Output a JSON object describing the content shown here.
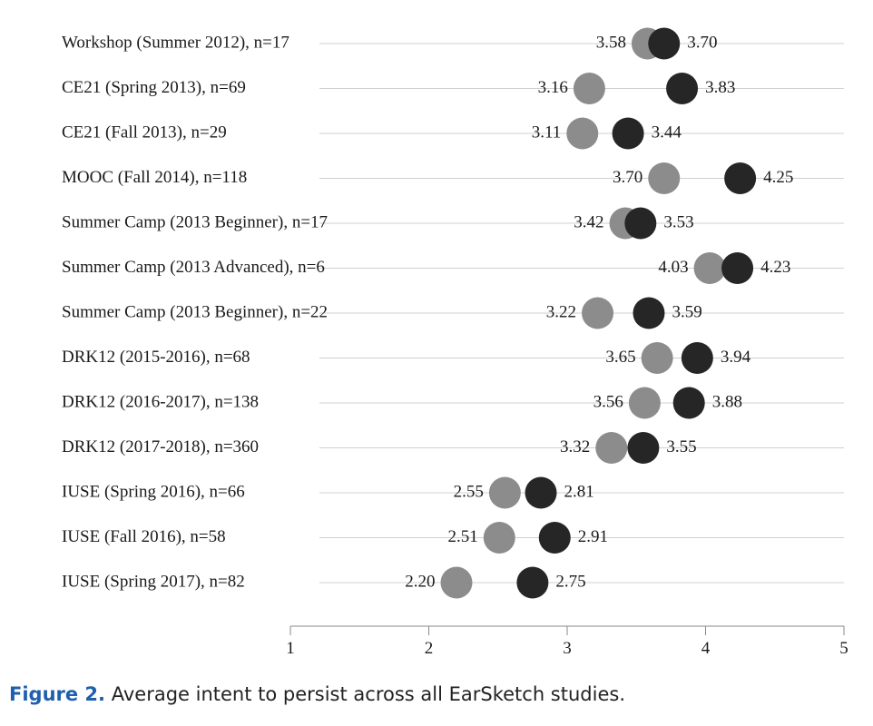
{
  "chart_data": {
    "type": "scatter",
    "title": "",
    "xlabel": "",
    "ylabel": "",
    "xlim": [
      1,
      5
    ],
    "x_ticks": [
      "1",
      "2",
      "3",
      "4",
      "5"
    ],
    "grid": true,
    "categories": [
      "Workshop (Summer 2012), n=17",
      "CE21 (Spring 2013), n=69",
      "CE21 (Fall 2013), n=29",
      "MOOC (Fall 2014), n=118",
      "Summer Camp (2013 Beginner), n=17",
      "Summer Camp (2013 Advanced), n=6",
      "Summer Camp (2013 Beginner), n=22",
      "DRK12 (2015-2016), n=68",
      "DRK12 (2016-2017), n=138",
      "DRK12 (2017-2018), n=360",
      "IUSE (Spring 2016), n=66",
      "IUSE (Fall 2016), n=58",
      "IUSE (Spring 2017), n=82"
    ],
    "series": [
      {
        "color": "#8c8c8c",
        "values": [
          3.58,
          3.16,
          3.11,
          3.7,
          3.42,
          4.03,
          3.22,
          3.65,
          3.56,
          3.32,
          2.55,
          2.51,
          2.2
        ],
        "labels": [
          "3.58",
          "3.16",
          "3.11",
          "3.70",
          "3.42",
          "4.03",
          "3.22",
          "3.65",
          "3.56",
          "3.32",
          "2.55",
          "2.51",
          "2.20"
        ]
      },
      {
        "color": "#262626",
        "values": [
          3.7,
          3.83,
          3.44,
          4.25,
          3.53,
          4.23,
          3.59,
          3.94,
          3.88,
          3.55,
          2.81,
          2.91,
          2.75
        ],
        "labels": [
          "3.70",
          "3.83",
          "3.44",
          "4.25",
          "3.53",
          "4.23",
          "3.59",
          "3.94",
          "3.88",
          "3.55",
          "2.81",
          "2.91",
          "2.75"
        ]
      }
    ]
  },
  "caption": {
    "figure_number": "Figure 2.",
    "text": " Average intent to persist across all EarSketch studies."
  }
}
